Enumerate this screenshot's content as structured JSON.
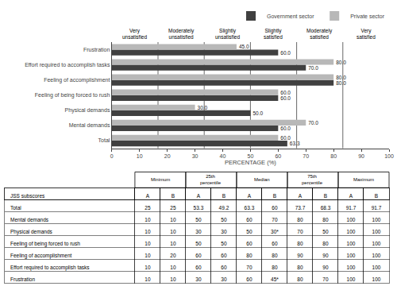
{
  "chart_data": [
    {
      "type": "bar",
      "orientation": "horizontal",
      "categories": [
        "Total",
        "Mental demands",
        "Physical demands",
        "Feeling of being forced to rush",
        "Feeling of accomplishment",
        "Effort required to accomplish tasks",
        "Frustration"
      ],
      "series": [
        {
          "name": "Government sector",
          "color": "#404040",
          "values": [
            63.3,
            60.0,
            50.0,
            60.0,
            80.0,
            70.0,
            60.0
          ],
          "value_labels": [
            "63.3",
            "60.0",
            "50.0",
            "60.0",
            "80.0",
            "70.0",
            "60.0"
          ]
        },
        {
          "name": "Private sector",
          "color": "#b8b8b8",
          "values": [
            60.0,
            70.0,
            30.0,
            60.0,
            80.0,
            80.0,
            45.0
          ],
          "value_labels": [
            "60.0",
            "70.0",
            "30.0",
            "60.0",
            "80.0",
            "80.0",
            "45.0"
          ]
        }
      ],
      "xlabel": "PERCENTAGE (%)",
      "xlim": [
        0,
        100
      ],
      "xticks": [
        0,
        10,
        20,
        30,
        40,
        50,
        60,
        70,
        80,
        90,
        100
      ],
      "grid": false,
      "legend": "upper right",
      "data_labels": true,
      "annotations": [
        {
          "text": "Very\nunsatisfied",
          "x": 8.33
        },
        {
          "text": "Moderately\nunsatisfied",
          "x": 25.0
        },
        {
          "text": "Slightly\nunsatisfied",
          "x": 41.67
        },
        {
          "text": "Slightly\nsatisfied",
          "x": 58.33
        },
        {
          "text": "Moderately\nsatisfied",
          "x": 75.0
        },
        {
          "text": "Very\nsatisfied",
          "x": 91.67
        }
      ],
      "vlines": [
        16.67,
        33.33,
        50.0,
        66.67,
        83.33
      ]
    },
    {
      "type": "table",
      "row_header": "JSS subscores",
      "column_groups": [
        "Minimum",
        "25th\npercentile",
        "Median",
        "75th\npercentile",
        "Maximum"
      ],
      "columns": [
        "A",
        "B",
        "A",
        "B",
        "A",
        "B",
        "A",
        "B",
        "A",
        "B"
      ],
      "rows": [
        [
          "Total",
          "25",
          "25",
          "53.3",
          "49.2",
          "63.3",
          "60",
          "73.7",
          "68.3",
          "91.7",
          "91.7"
        ],
        [
          "Mental demands",
          "10",
          "10",
          "50",
          "50",
          "60",
          "70",
          "80",
          "80",
          "100",
          "100"
        ],
        [
          "Physical demands",
          "10",
          "10",
          "30",
          "30",
          "50",
          "30*",
          "70",
          "50",
          "100",
          "100"
        ],
        [
          "Feeling of being forced to rush",
          "10",
          "10",
          "50",
          "50",
          "60",
          "60",
          "80",
          "80",
          "100",
          "100"
        ],
        [
          "Feeling of accomplishment",
          "10",
          "20",
          "60",
          "60",
          "80",
          "80",
          "90",
          "90",
          "100",
          "100"
        ],
        [
          "Effort required to accomplish tasks",
          "10",
          "10",
          "60",
          "60",
          "70",
          "80",
          "80",
          "90",
          "100",
          "100"
        ],
        [
          "Frustration",
          "10",
          "10",
          "30",
          "30",
          "60",
          "45*",
          "80",
          "70",
          "100",
          "100"
        ]
      ]
    }
  ]
}
